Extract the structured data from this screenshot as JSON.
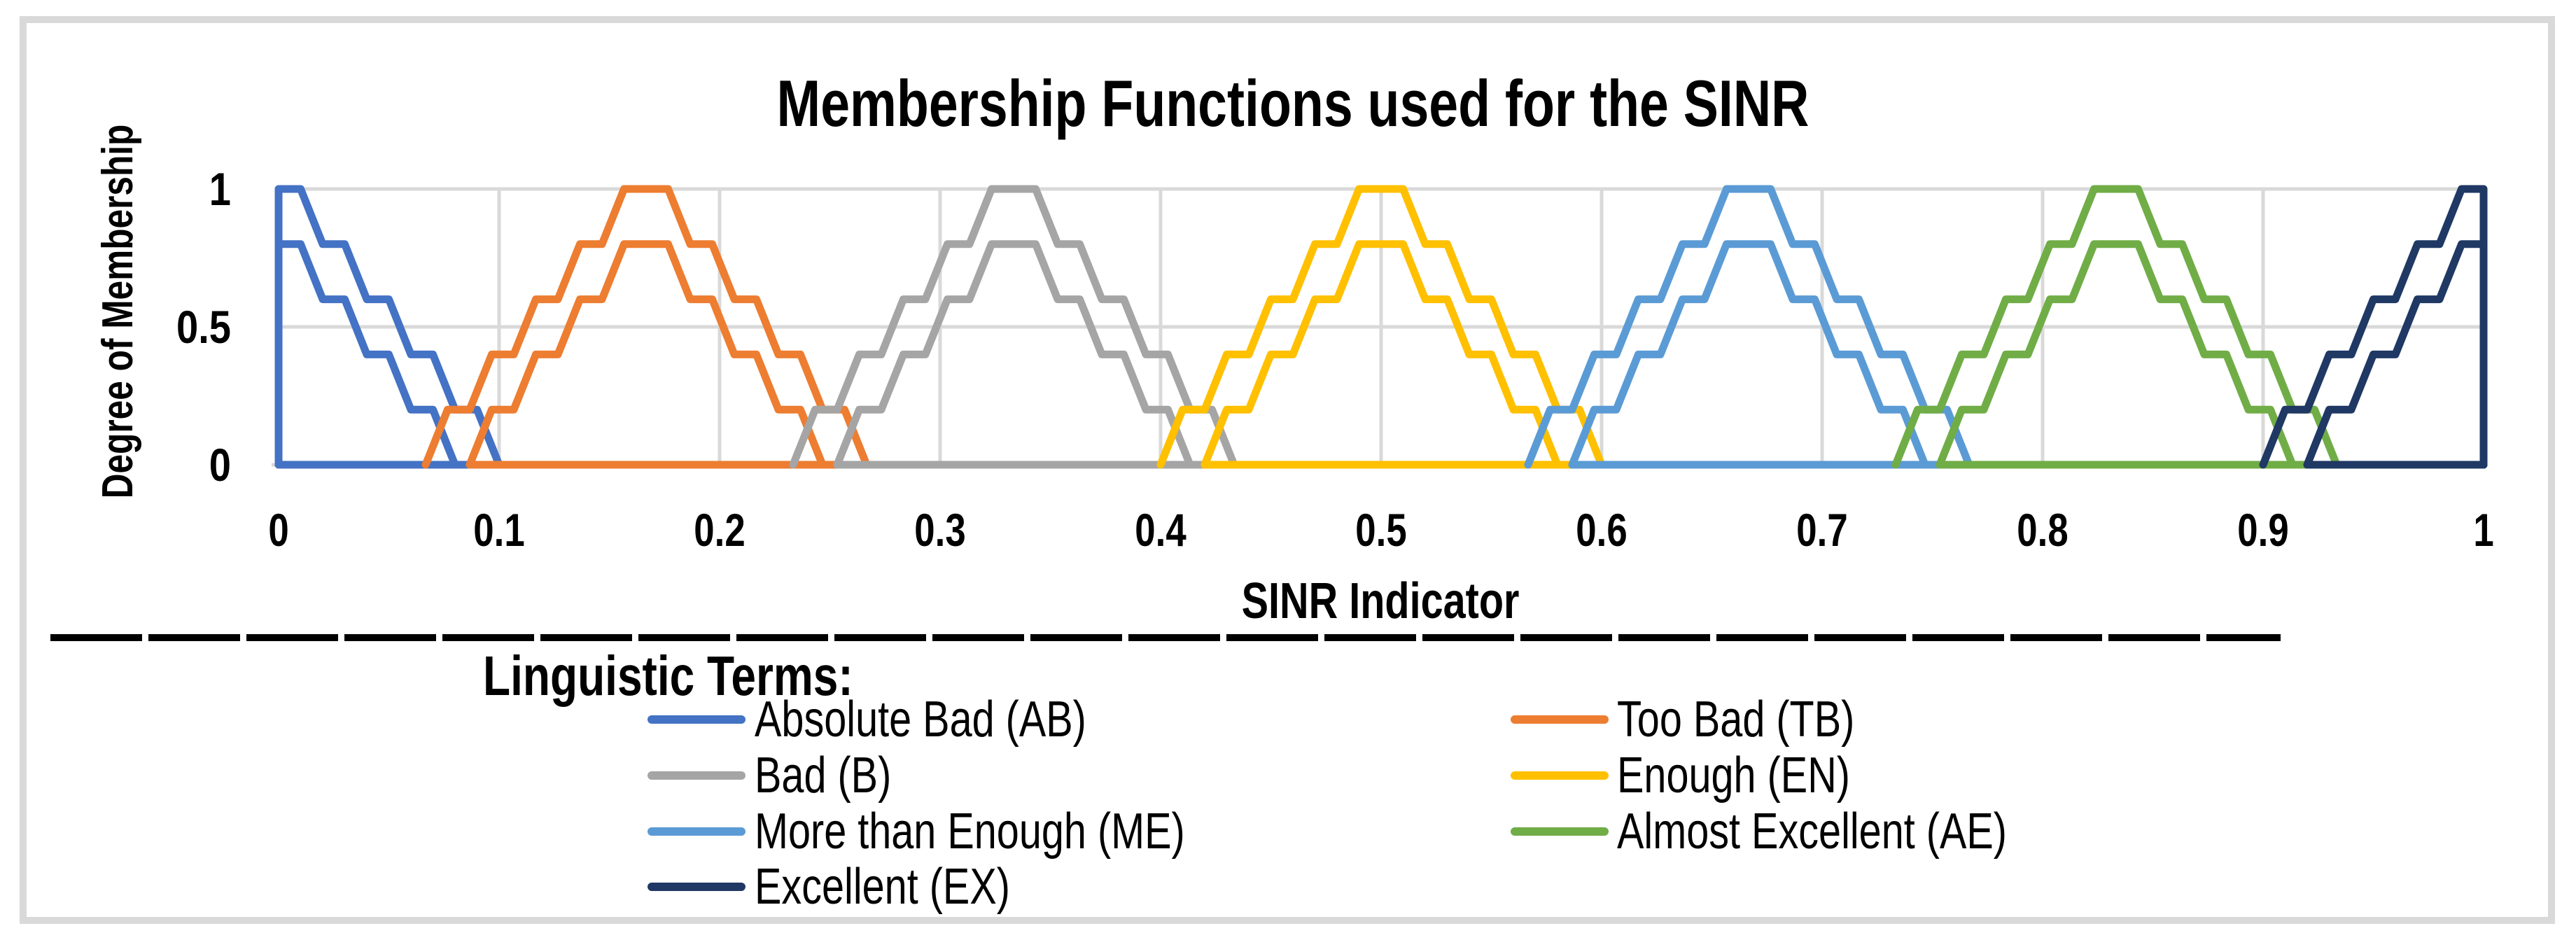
{
  "title": "Membership Functions used for the SINR",
  "chart_data": {
    "type": "line",
    "title": "Membership Functions used for the SINR",
    "xlabel": "SINR Indicator",
    "ylabel": "Degree of Membership",
    "xlim": [
      0,
      1
    ],
    "ylim": [
      0,
      1
    ],
    "grid": true,
    "x_ticks": [
      "0",
      "0.1",
      "0.2",
      "0.3",
      "0.4",
      "0.5",
      "0.6",
      "0.7",
      "0.8",
      "0.9",
      "1"
    ],
    "x_tick_values": [
      0,
      0.1,
      0.2,
      0.3,
      0.4,
      0.5,
      0.6,
      0.7,
      0.8,
      0.9,
      1
    ],
    "y_ticks": [
      "0",
      "0.5",
      "1"
    ],
    "y_tick_values": [
      0,
      0.5,
      1
    ],
    "note": "Seven triangular interval type-2 fuzzy membership functions; each term has an upper MF (peak 1.0, half-width 0.1) and a lower MF (peak 0.8, half-width 0.08), drawn as staircase lines quantized to membership steps of 0.2 with 0.01-wide treads and risers; each series also traces the zero baseline starting at its lower-MF left foot.",
    "mf_geometry": {
      "upper_peak": 1.0,
      "upper_halfwidth": 0.1,
      "lower_peak": 0.8,
      "lower_halfwidth": 0.08,
      "level_step": 0.2,
      "x_step": 0.01
    },
    "series": [
      {
        "name": "Absolute Bad (AB)",
        "abbrev": "AB",
        "center": 0.0,
        "color": "#4472C4"
      },
      {
        "name": "Too Bad (TB)",
        "abbrev": "TB",
        "center": 0.16667,
        "color": "#ED7D31"
      },
      {
        "name": "Bad (B)",
        "abbrev": "B",
        "center": 0.33333,
        "color": "#A5A5A5"
      },
      {
        "name": "Enough (EN)",
        "abbrev": "EN",
        "center": 0.5,
        "color": "#FFC000"
      },
      {
        "name": "More than Enough (ME)",
        "abbrev": "ME",
        "center": 0.66667,
        "color": "#5B9BD5"
      },
      {
        "name": "Almost Excellent (AE)",
        "abbrev": "AE",
        "center": 0.83333,
        "color": "#70AD47"
      },
      {
        "name": "Excellent (EX)",
        "abbrev": "EX",
        "center": 1.0,
        "color": "#1F3864"
      }
    ]
  },
  "legend": {
    "heading": "Linguistic Terms:",
    "columns": [
      {
        "items": [
          {
            "label": "Absolute Bad (AB)",
            "color": "#4472C4"
          },
          {
            "label": "Bad (B)",
            "color": "#A5A5A5"
          },
          {
            "label": "More than Enough (ME)",
            "color": "#5B9BD5"
          },
          {
            "label": "Excellent (EX)",
            "color": "#1F3864"
          }
        ]
      },
      {
        "items": [
          {
            "label": "Too Bad (TB)",
            "color": "#ED7D31"
          },
          {
            "label": "Enough (EN)",
            "color": "#FFC000"
          },
          {
            "label": "Almost Excellent (AE)",
            "color": "#70AD47"
          }
        ]
      }
    ]
  },
  "colors": {
    "grid": "#D9D9D9",
    "axis": "#D9D9D9",
    "figure_border": "#D9D9D9",
    "text": "#000000",
    "separator": "#000000"
  }
}
